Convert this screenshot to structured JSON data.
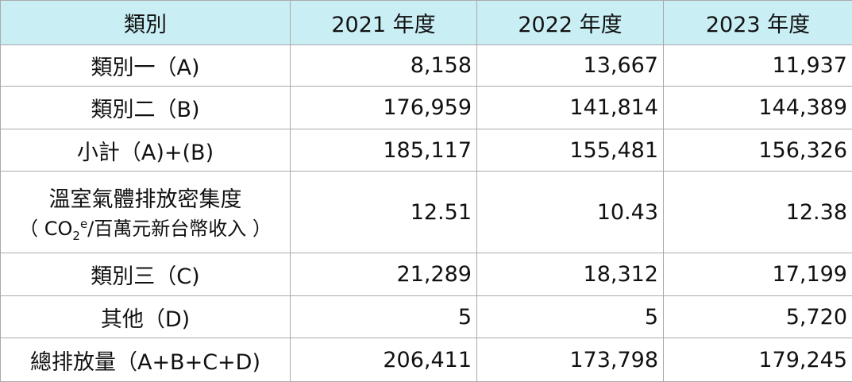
{
  "table": {
    "header": [
      "類別",
      "2021 年度",
      "2022 年度",
      "2023 年度"
    ],
    "rows": [
      [
        "類別一（A)",
        "8,158",
        "13,667",
        "11,937"
      ],
      [
        "類別二（B)",
        "176,959",
        "141,814",
        "144,389"
      ],
      [
        "小計（A)+(B)",
        "185,117",
        "155,481",
        "156,326"
      ],
      [
        {
          "line1": "溫室氣體排放密集度",
          "line2": [
            "（ CO",
            "2",
            "e",
            "/百萬元新台幣收入 ）"
          ]
        },
        "12.51",
        "10.43",
        "12.38"
      ],
      [
        "類別三（C)",
        "21,289",
        "18,312",
        "17,199"
      ],
      [
        "其他（D)",
        "5",
        "5",
        "5,720"
      ],
      [
        "總排放量（A+B+C+D)",
        "206,411",
        "173,798",
        "179,245"
      ]
    ]
  }
}
